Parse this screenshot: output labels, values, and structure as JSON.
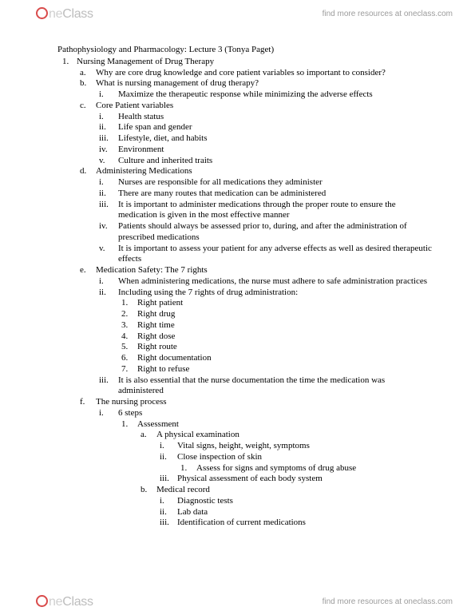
{
  "brand": {
    "part1": "ne",
    "part2": "Class"
  },
  "tagline": "find more resources at oneclass.com",
  "title": "Pathophysiology and Pharmacology: Lecture 3 (Tonya Paget)",
  "n1": "Nursing Management of Drug Therapy",
  "a": "Why are core drug knowledge and core patient variables so important to consider?",
  "b": "What is nursing management of drug therapy?",
  "b_i": "Maximize the therapeutic response while minimizing the adverse effects",
  "c": "Core Patient variables",
  "c_i": "Health status",
  "c_ii": "Life span and gender",
  "c_iii": "Lifestyle, diet, and habits",
  "c_iv": "Environment",
  "c_v": "Culture and inherited traits",
  "d": "Administering Medications",
  "d_i": "Nurses are responsible for all medications they administer",
  "d_ii": "There are many routes that medication can be administered",
  "d_iii": "It is important to administer medications through the proper route to ensure the medication is given in the most effective manner",
  "d_iv": "Patients should always be assessed prior to, during, and after the administration of prescribed medications",
  "d_v": "It is important to assess your patient for any adverse effects as well as desired therapeutic effects",
  "e": "Medication Safety: The 7 rights",
  "e_i": "When administering medications, the nurse must adhere to safe administration practices",
  "e_ii": "Including using the 7 rights of drug administration:",
  "r1": "Right patient",
  "r2": "Right drug",
  "r3": "Right time",
  "r4": "Right dose",
  "r5": "Right route",
  "r6": "Right documentation",
  "r7": "Right to refuse",
  "e_iii": "It is also essential that the nurse documentation the time the medication was administered",
  "f": "The nursing process",
  "f_i": "6 steps",
  "s1": "Assessment",
  "s1a": "A physical examination",
  "s1a_i": "Vital signs, height, weight, symptoms",
  "s1a_ii": "Close inspection of skin",
  "s1a_ii_1": "Assess for signs and symptoms of drug abuse",
  "s1a_iii": "Physical assessment of each body system",
  "s1b": "Medical record",
  "s1b_i": "Diagnostic tests",
  "s1b_ii": "Lab data",
  "s1b_iii": "Identification of current medications"
}
